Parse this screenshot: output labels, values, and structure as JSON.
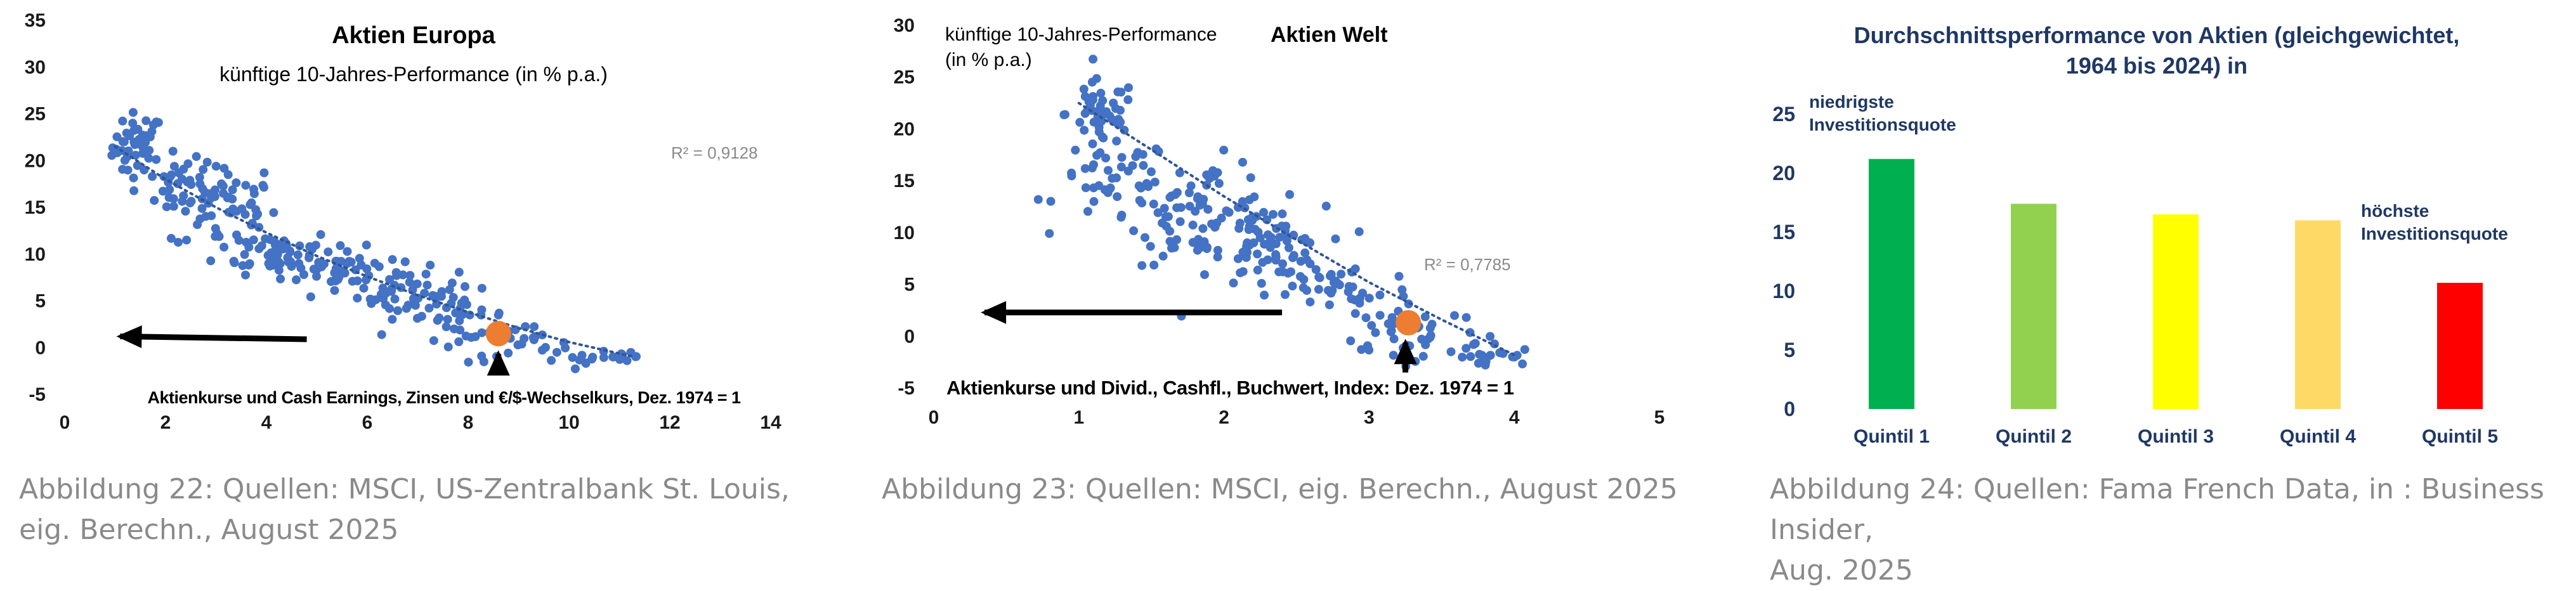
{
  "panels": [
    {
      "caption": "Abbildung 22: Quellen: MSCI, US-Zentralbank St. Louis,\neig. Berechn., August 2025"
    },
    {
      "caption": "Abbildung 23: Quellen: MSCI, eig. Berechn., August 2025"
    },
    {
      "caption": "Abbildung 24: Quellen: Fama French Data, in : Business Insider,\nAug. 2025"
    }
  ],
  "chart_data": [
    {
      "type": "scatter",
      "title": "Aktien Europa",
      "subtitle": "künftige 10-Jahres-Performance (in % p.a.)",
      "xlabel": "Aktienkurse und Cash Earnings, Zinsen und €/$-Wechselkurs, Dez. 1974 = 1",
      "ylabel": "",
      "r2_label": "R² = 0,9128",
      "xlim": [
        0,
        14
      ],
      "ylim": [
        -5,
        35
      ],
      "xticks": [
        0,
        2,
        4,
        6,
        8,
        10,
        12,
        14
      ],
      "yticks": [
        -5,
        0,
        5,
        10,
        15,
        20,
        25,
        30,
        35
      ],
      "point_color": "#4472c4",
      "highlight": {
        "x": 8.6,
        "y": 1.5,
        "color": "#ed7d31"
      },
      "trend": [
        [
          1.0,
          21.5
        ],
        [
          2.0,
          18.0
        ],
        [
          3.0,
          15.0
        ],
        [
          4.0,
          12.3
        ],
        [
          5.0,
          9.8
        ],
        [
          6.0,
          7.6
        ],
        [
          7.0,
          5.6
        ],
        [
          8.0,
          3.8
        ],
        [
          9.0,
          2.1
        ],
        [
          10.0,
          0.6
        ],
        [
          11.3,
          -1.0
        ]
      ],
      "clusters": [
        {
          "x": 1.45,
          "y": 21.5,
          "sx": 0.25,
          "sy": 1.8,
          "n": 45
        },
        {
          "x": 2.4,
          "y": 17.0,
          "sx": 0.4,
          "sy": 1.6,
          "n": 35
        },
        {
          "x": 3.2,
          "y": 15.0,
          "sx": 0.5,
          "sy": 2.5,
          "n": 50
        },
        {
          "x": 4.2,
          "y": 10.3,
          "sx": 0.6,
          "sy": 1.2,
          "n": 55
        },
        {
          "x": 5.5,
          "y": 8.2,
          "sx": 0.6,
          "sy": 1.2,
          "n": 50
        },
        {
          "x": 6.8,
          "y": 5.8,
          "sx": 0.5,
          "sy": 1.3,
          "n": 40
        },
        {
          "x": 7.8,
          "y": 3.5,
          "sx": 0.5,
          "sy": 1.3,
          "n": 35
        },
        {
          "x": 9.0,
          "y": 0.3,
          "sx": 0.5,
          "sy": 1.0,
          "n": 25
        },
        {
          "x": 10.6,
          "y": -1.0,
          "sx": 0.6,
          "sy": 0.6,
          "n": 20
        }
      ],
      "arrow_label": "",
      "arrow": {
        "from": [
          4.8,
          0.9
        ],
        "to": [
          1.1,
          1.2
        ]
      },
      "up_arrow": {
        "x": 8.6,
        "from": -2.8,
        "to": 0.0
      }
    },
    {
      "type": "scatter",
      "title": "Aktien Welt",
      "subtitle": "künftige 10-Jahres-Performance\n(in % p.a.)",
      "xlabel": "Aktienkurse und Divid., Cashfl., Buchwert, Index: Dez. 1974 = 1",
      "ylabel": "",
      "r2_label": "R² = 0,7785",
      "xlim": [
        0,
        5
      ],
      "ylim": [
        -5,
        30
      ],
      "xticks": [
        0,
        1,
        2,
        3,
        4,
        5
      ],
      "yticks": [
        -5,
        0,
        5,
        10,
        15,
        20,
        25,
        30
      ],
      "point_color": "#4472c4",
      "highlight": {
        "x": 3.27,
        "y": 1.3,
        "color": "#ed7d31"
      },
      "trend": [
        [
          1.0,
          22.5
        ],
        [
          1.5,
          18.0
        ],
        [
          2.0,
          13.5
        ],
        [
          2.5,
          9.3
        ],
        [
          3.0,
          5.2
        ],
        [
          3.5,
          1.6
        ],
        [
          4.0,
          -1.8
        ]
      ],
      "clusters": [
        {
          "x": 1.15,
          "y": 21.5,
          "sx": 0.12,
          "sy": 1.6,
          "n": 45
        },
        {
          "x": 1.25,
          "y": 15.0,
          "sx": 0.2,
          "sy": 2.0,
          "n": 45
        },
        {
          "x": 1.85,
          "y": 12.0,
          "sx": 0.25,
          "sy": 2.5,
          "n": 80
        },
        {
          "x": 2.3,
          "y": 8.5,
          "sx": 0.2,
          "sy": 2.0,
          "n": 70
        },
        {
          "x": 2.8,
          "y": 4.5,
          "sx": 0.25,
          "sy": 1.5,
          "n": 40
        },
        {
          "x": 3.3,
          "y": 0.8,
          "sx": 0.25,
          "sy": 1.3,
          "n": 35
        },
        {
          "x": 3.75,
          "y": -2.0,
          "sx": 0.2,
          "sy": 0.7,
          "n": 25
        }
      ],
      "arrow": {
        "from": [
          2.4,
          2.3
        ],
        "to": [
          0.35,
          2.3
        ]
      },
      "up_arrow": {
        "x": 3.25,
        "from": -3.5,
        "to": 0.0
      }
    },
    {
      "type": "bar",
      "title": "Durchschnittsperformance von Aktien (gleichgewichtet,\n1964 bis 2024) in",
      "categories": [
        "Quintil 1",
        "Quintil 2",
        "Quintil 3",
        "Quintil 4",
        "Quintil 5"
      ],
      "values": [
        21.2,
        17.4,
        16.5,
        16.0,
        10.7
      ],
      "colors": [
        "#00b050",
        "#92d050",
        "#ffff00",
        "#ffd966",
        "#ff0000"
      ],
      "annotations": [
        "niedrigste\nInvestitionsquote",
        "höchste\nInvestitionsquote"
      ],
      "ylim": [
        0,
        25
      ],
      "yticks": [
        0,
        5,
        10,
        15,
        20,
        25
      ]
    }
  ]
}
